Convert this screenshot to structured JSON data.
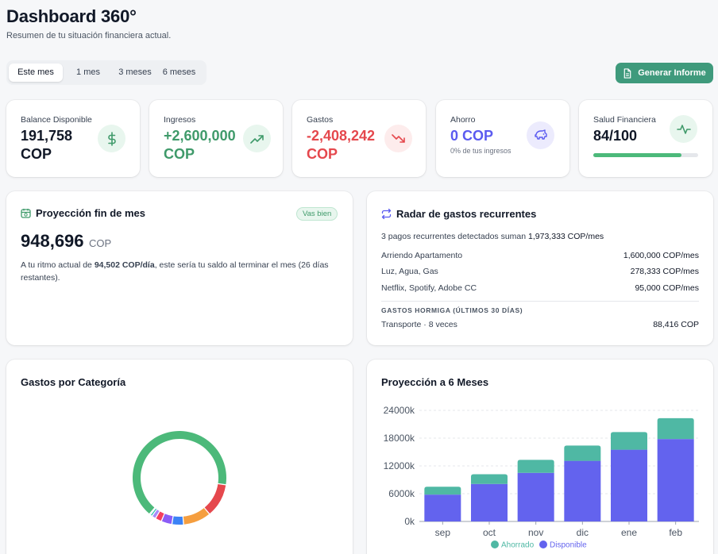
{
  "header": {
    "title": "Dashboard 360°",
    "subtitle": "Resumen de tu situación financiera actual."
  },
  "periods": [
    "Este mes",
    "1 mes",
    "3 meses",
    "6 meses"
  ],
  "generate_button": "Generar Informe",
  "kpis": [
    {
      "label": "Balance Disponible",
      "value_line1": "191,758",
      "value_line2": "COP",
      "icon": "dollar-icon",
      "color": "#111827"
    },
    {
      "label": "Ingresos",
      "value_line1": "+2,600,000",
      "value_line2": "COP",
      "icon": "trending-up-icon",
      "color": "#3f9a6a"
    },
    {
      "label": "Gastos",
      "value_line1": "-2,408,242",
      "value_line2": "COP",
      "icon": "trending-down-icon",
      "color": "#e5484d"
    },
    {
      "label": "Ahorro",
      "value": "0 COP",
      "note": "0% de tus ingresos",
      "icon": "piggy-bank-icon",
      "color": "#5b5bf0"
    },
    {
      "label": "Salud Financiera",
      "value": "84/100",
      "score": 84,
      "icon": "pulse-icon",
      "color": "#111827"
    }
  ],
  "projection": {
    "title": "Proyección fin de mes",
    "badge": "Vas bien",
    "value": "948,696",
    "currency": "COP",
    "desc_pre": "A tu ritmo actual de ",
    "desc_rate": "94,502 COP/día",
    "desc_post": ", este sería tu saldo al terminar el mes (26 días restantes)."
  },
  "radar": {
    "title": "Radar de gastos recurrentes",
    "summary_pre": "3 pagos recurrentes detectados suman ",
    "summary_total": "1,973,333 COP/mes",
    "items": [
      {
        "name": "Arriendo Apartamento",
        "amount": "1,600,000 COP/mes"
      },
      {
        "name": "Luz, Agua, Gas",
        "amount": "278,333 COP/mes"
      },
      {
        "name": "Netflix, Spotify, Adobe CC",
        "amount": "95,000 COP/mes"
      }
    ],
    "hormiga_title": "GASTOS HORMIGA (ÚLTIMOS 30 DÍAS)",
    "hormiga_item": {
      "name": "Transporte · 8 veces",
      "amount": "88,416 COP"
    }
  },
  "categories": {
    "title": "Gastos por Categoría",
    "chart_data": {
      "type": "pie",
      "values": [
        66.4,
        11.6,
        9.6,
        4.0,
        3.7,
        2.2,
        1.4,
        0.7,
        0.4
      ],
      "colors": [
        "#4cb97a",
        "#e5484d",
        "#f59e3f",
        "#3b82f6",
        "#8b5cf6",
        "#f43f5e",
        "#a78bfa",
        "#14b8a6",
        "#60a5fa"
      ]
    }
  },
  "projection6": {
    "title": "Proyección a 6 Meses",
    "chart_data": {
      "type": "bar",
      "stacked": true,
      "categories": [
        "sep",
        "oct",
        "nov",
        "dic",
        "ene",
        "feb"
      ],
      "series": [
        {
          "name": "Disponible",
          "values": [
            5800,
            8100,
            10500,
            13100,
            15500,
            17800
          ],
          "color": "#6363ee"
        },
        {
          "name": "Ahorrado",
          "values": [
            1700,
            2100,
            2800,
            3300,
            3800,
            4500
          ],
          "color": "#4fb8a4"
        }
      ],
      "yticks": [
        "0k",
        "6000k",
        "12000k",
        "18000k",
        "24000k"
      ],
      "ylim": [
        0,
        24000
      ],
      "legend": "bottom"
    }
  }
}
